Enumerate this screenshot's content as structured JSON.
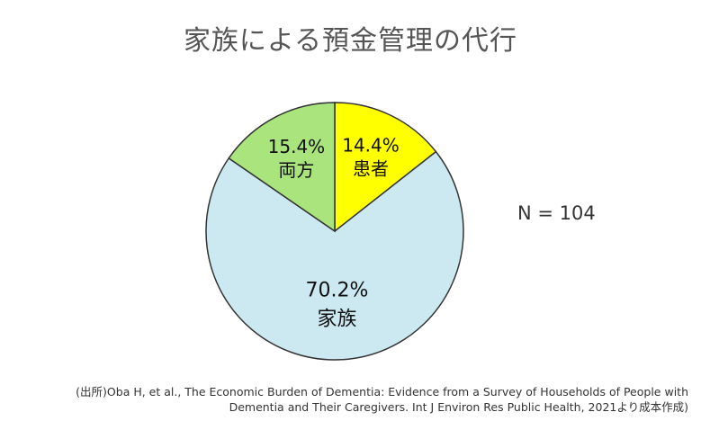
{
  "title": "家族による預金管理の代行",
  "n_label": "N = 104",
  "source": {
    "line1": "(出所)Oba H, et al., The Economic Burden of Dementia: Evidence from a Survey of Households of People with",
    "line2": "Dementia and Their Caregivers. Int J Environ Res Public Health, 2021より成本作成)"
  },
  "chart_data": {
    "type": "pie",
    "title": "家族による預金管理の代行",
    "start_angle_deg": 0,
    "direction": "clockwise",
    "slices": [
      {
        "label": "患者",
        "value": 14.4,
        "value_label": "14.4%",
        "color": "#ffff00"
      },
      {
        "label": "家族",
        "value": 70.2,
        "value_label": "70.2%",
        "color": "#cce8f0"
      },
      {
        "label": "両方",
        "value": 15.4,
        "value_label": "15.4%",
        "color": "#a9e47c"
      }
    ],
    "stroke_color": "#333333"
  }
}
